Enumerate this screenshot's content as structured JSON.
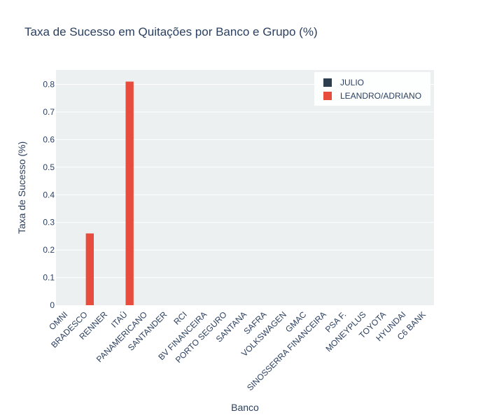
{
  "chart_data": {
    "type": "bar",
    "title": "Taxa de Sucesso em Quitações por Banco e Grupo (%)",
    "xlabel": "Banco",
    "ylabel": "Taxa de Sucesso (%)",
    "categories": [
      "OMNI",
      "BRADESCO",
      "RENNER",
      "ITAÚ",
      "PANAMERICANO",
      "SANTANDER",
      "RCI",
      "BV FINANCEIRA",
      "PORTO SEGURO",
      "SANTANA",
      "SAFRA",
      "VOLKSWAGEN",
      "GMAC",
      "SINOSSERRA FINANCEIRA",
      "PSA F.",
      "MONEYPLUS",
      "TOYOTA",
      "HYUNDAI",
      "C6 BANK"
    ],
    "series": [
      {
        "name": "JULIO",
        "color": "#2c3e50",
        "values": [
          0,
          0,
          0,
          0,
          0,
          0,
          0,
          0,
          0,
          0,
          0,
          0,
          0,
          0,
          0,
          0,
          0,
          0,
          0
        ]
      },
      {
        "name": "LEANDRO/ADRIANO",
        "color": "#e74c3c",
        "values": [
          0,
          0.26,
          0,
          0.81,
          0,
          0,
          0,
          0,
          0,
          0,
          0,
          0,
          0,
          0,
          0,
          0,
          0,
          0,
          0
        ]
      }
    ],
    "yticks": [
      0,
      0.1,
      0.2,
      0.3,
      0.4,
      0.5,
      0.6,
      0.7,
      0.8
    ],
    "ytick_labels": [
      "0",
      "0.1",
      "0.2",
      "0.3",
      "0.4",
      "0.5",
      "0.6",
      "0.7",
      "0.8"
    ],
    "ylim": [
      0,
      0.852
    ],
    "grid": true,
    "legend_position": "top-right",
    "plot_background": "#ecf0f1"
  }
}
